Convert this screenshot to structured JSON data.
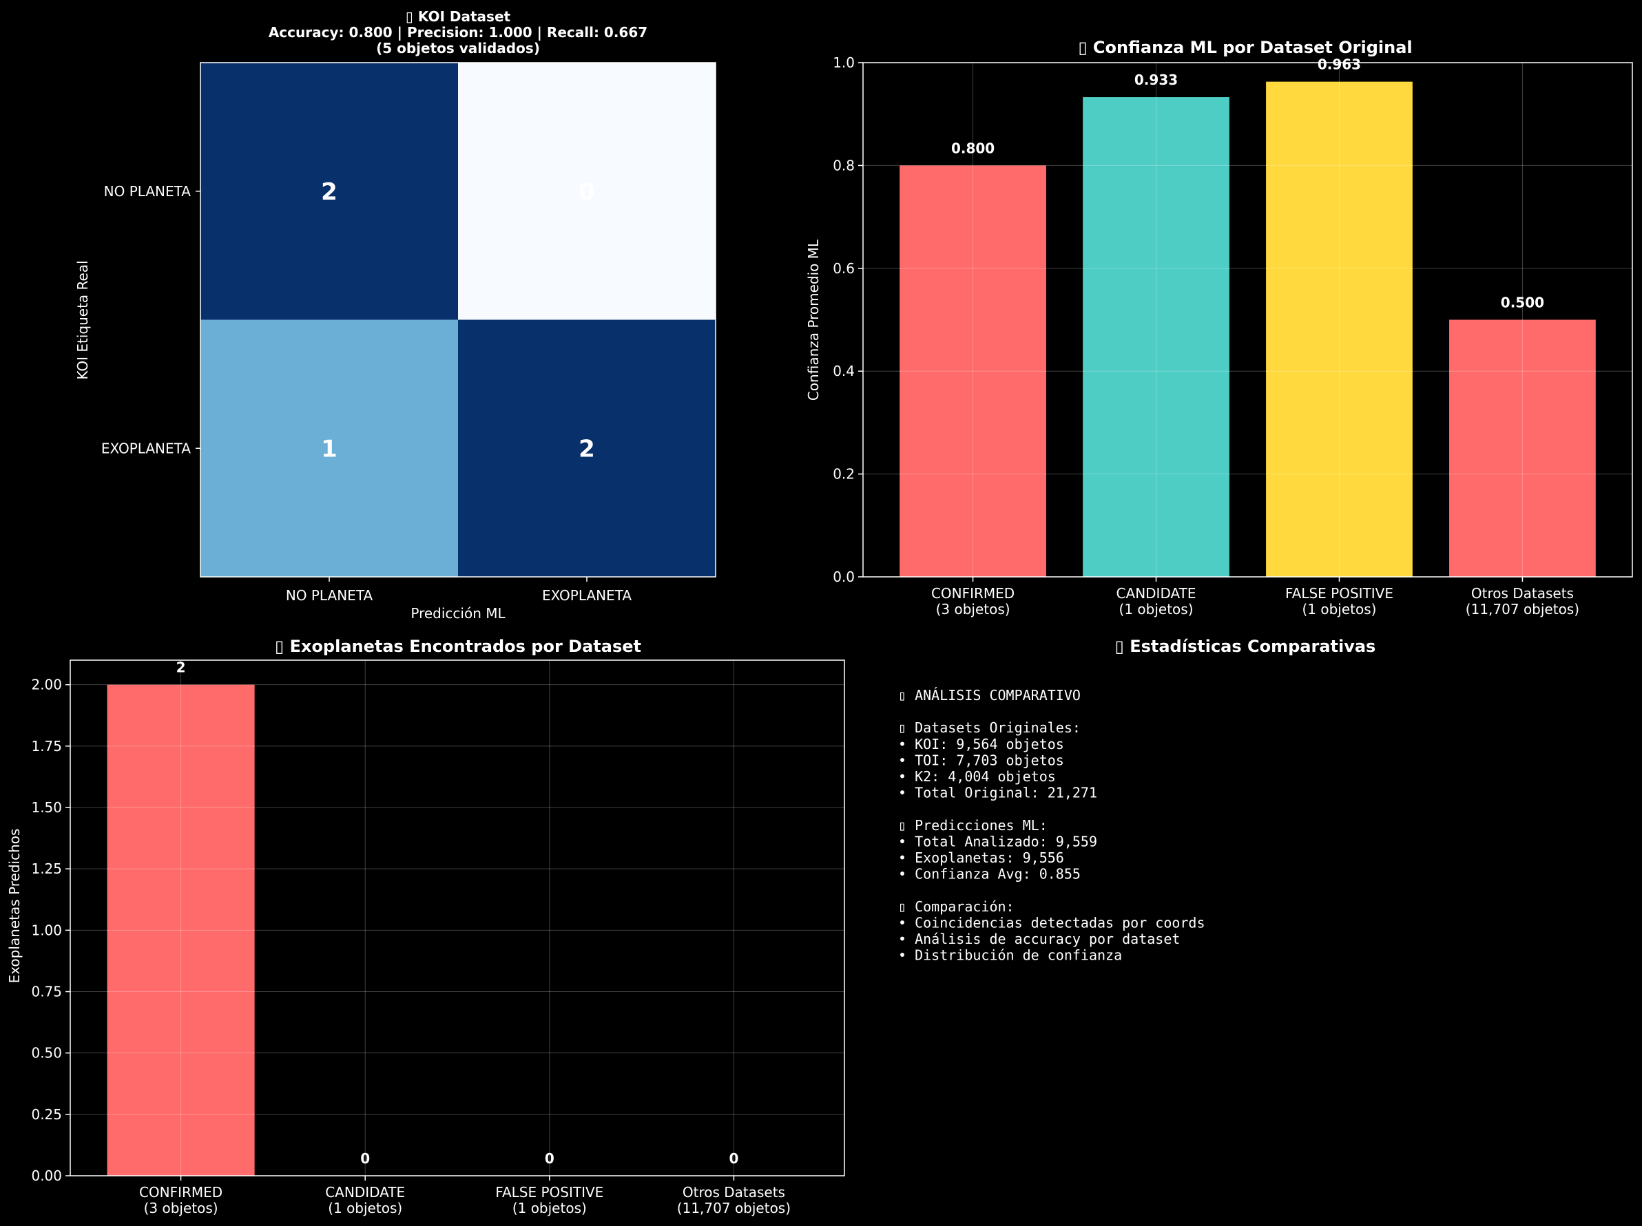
{
  "chart_data": [
    {
      "type": "heatmap",
      "title_lines": [
        "▯ KOI Dataset",
        "Accuracy: 0.800 | Precision: 1.000 | Recall: 0.667",
        "(5 objetos validados)"
      ],
      "xlabel": "Predicción ML",
      "ylabel": "KOI Etiqueta Real",
      "x_categories": [
        "NO PLANETA",
        "EXOPLANETA"
      ],
      "y_categories": [
        "NO PLANETA",
        "EXOPLANETA"
      ],
      "matrix": [
        [
          2,
          0
        ],
        [
          1,
          2
        ]
      ],
      "cell_colors": [
        [
          "#08306b",
          "#f7fbff"
        ],
        [
          "#6baed6",
          "#08306b"
        ]
      ]
    },
    {
      "type": "bar",
      "title": "▯ Confianza ML por Dataset Original",
      "ylabel": "Confianza Promedio ML",
      "categories": [
        "CONFIRMED\n(3 objetos)",
        "CANDIDATE\n(1 objetos)",
        "FALSE POSITIVE\n(1 objetos)",
        "Otros Datasets\n(11,707 objetos)"
      ],
      "values": [
        0.8,
        0.933,
        0.963,
        0.5
      ],
      "value_labels": [
        "0.800",
        "0.933",
        "0.963",
        "0.500"
      ],
      "colors": [
        "#ff6b6b",
        "#4ecdc4",
        "#ffd93d",
        "#ff6b6b"
      ],
      "ylim": [
        0,
        1.0
      ],
      "yticks": [
        "0.0",
        "0.2",
        "0.4",
        "0.6",
        "0.8",
        "1.0"
      ],
      "grid": true
    },
    {
      "type": "bar",
      "title": "▯ Exoplanetas Encontrados por Dataset",
      "ylabel": "Exoplanetas Predichos",
      "categories": [
        "CONFIRMED\n(3 objetos)",
        "CANDIDATE\n(1 objetos)",
        "FALSE POSITIVE\n(1 objetos)",
        "Otros Datasets\n(11,707 objetos)"
      ],
      "values": [
        2,
        0,
        0,
        0
      ],
      "value_labels": [
        "2",
        "0",
        "0",
        "0"
      ],
      "colors": [
        "#ff6b6b",
        "#4ecdc4",
        "#ffd93d",
        "#ff6b6b"
      ],
      "ylim": [
        0,
        2.1
      ],
      "yticks": [
        "0.00",
        "0.25",
        "0.50",
        "0.75",
        "1.00",
        "1.25",
        "1.50",
        "1.75",
        "2.00"
      ],
      "grid": true
    }
  ],
  "stats_panel": {
    "title": "▯ Estadísticas Comparativas",
    "lines": [
      "▯ ANÁLISIS COMPARATIVO",
      "",
      "▯ Datasets Originales:",
      "• KOI: 9,564 objetos",
      "• TOI: 7,703 objetos",
      "• K2: 4,004 objetos",
      "• Total Original: 21,271",
      "",
      "▯ Predicciones ML:",
      "• Total Analizado: 9,559",
      "• Exoplanetas: 9,556",
      "• Confianza Avg: 0.855",
      "",
      "▯ Comparación:",
      "• Coincidencias detectadas por coords",
      "• Análisis de accuracy por dataset",
      "• Distribución de confianza"
    ]
  }
}
